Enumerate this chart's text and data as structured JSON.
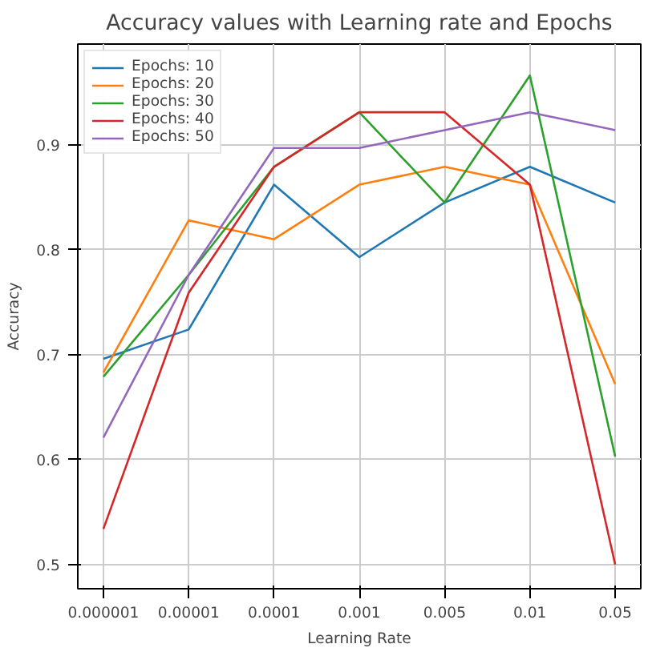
{
  "chart_data": {
    "type": "line",
    "title": "Accuracy values with Learning rate and Epochs",
    "xlabel": "Learning Rate",
    "ylabel": "Accuracy",
    "categories": [
      "0.000001",
      "0.00001",
      "0.0001",
      "0.001",
      "0.005",
      "0.01",
      "0.05"
    ],
    "series": [
      {
        "name": "Epochs: 10",
        "color": "#1f77b4",
        "values": [
          0.696,
          0.724,
          0.862,
          0.793,
          0.845,
          0.879,
          0.845
        ]
      },
      {
        "name": "Epochs: 20",
        "color": "#ff7f0e",
        "values": [
          0.683,
          0.828,
          0.81,
          0.862,
          0.879,
          0.862,
          0.672
        ]
      },
      {
        "name": "Epochs: 30",
        "color": "#2ca02c",
        "values": [
          0.679,
          0.776,
          0.879,
          0.931,
          0.845,
          0.966,
          0.603
        ]
      },
      {
        "name": "Epochs: 40",
        "color": "#d62728",
        "values": [
          0.534,
          0.759,
          0.879,
          0.931,
          0.931,
          0.862,
          0.5
        ]
      },
      {
        "name": "Epochs: 50",
        "color": "#9467bd",
        "values": [
          0.621,
          0.776,
          0.897,
          0.897,
          0.914,
          0.931,
          0.914
        ]
      }
    ],
    "ylim": [
      0.477,
      0.996
    ],
    "yticks": [
      0.5,
      0.6,
      0.7,
      0.8,
      0.9
    ],
    "grid": true,
    "legend": "top left"
  }
}
